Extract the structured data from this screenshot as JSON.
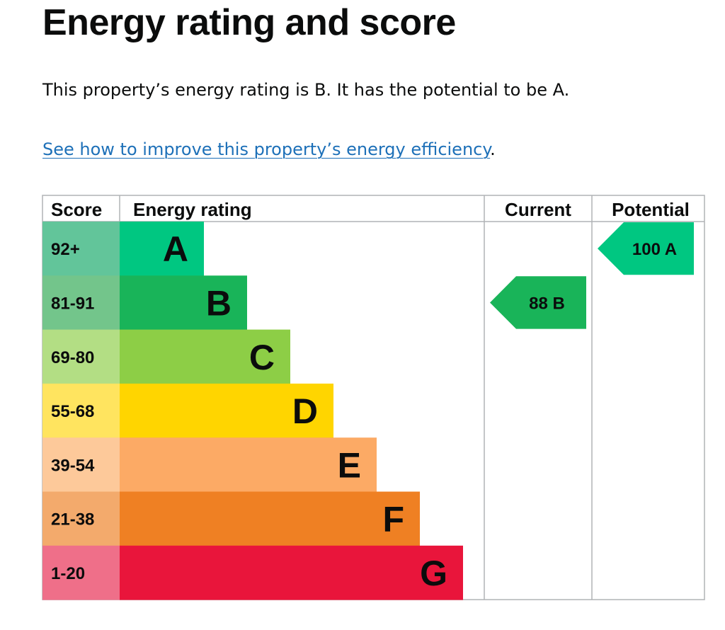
{
  "page": {
    "title": "Energy rating and score",
    "summary": "This property’s energy rating is B. It has the potential to be A.",
    "improve_link": "See how to improve this property’s energy efficiency",
    "improve_link_suffix": "."
  },
  "chart_data": {
    "type": "bar",
    "headers": {
      "score": "Score",
      "rating": "Energy rating",
      "current": "Current",
      "potential": "Potential"
    },
    "bands": [
      {
        "letter": "A",
        "score_range": "92+",
        "color": "#00c781",
        "score_color": "#62c59a"
      },
      {
        "letter": "B",
        "score_range": "81-91",
        "color": "#19b459",
        "score_color": "#73c58b"
      },
      {
        "letter": "C",
        "score_range": "69-80",
        "color": "#8dce46",
        "score_color": "#b3de84"
      },
      {
        "letter": "D",
        "score_range": "55-68",
        "color": "#ffd500",
        "score_color": "#ffe45f"
      },
      {
        "letter": "E",
        "score_range": "39-54",
        "color": "#fcaa65",
        "score_color": "#fdc99a"
      },
      {
        "letter": "F",
        "score_range": "21-38",
        "color": "#ef8023",
        "score_color": "#f3aa6c"
      },
      {
        "letter": "G",
        "score_range": "1-20",
        "color": "#e9153b",
        "score_color": "#ef6f89"
      }
    ],
    "current": {
      "score": 88,
      "band": "B",
      "label": "88  B",
      "color": "#19b459"
    },
    "potential": {
      "score": 100,
      "band": "A",
      "label": "100  A",
      "color": "#00c781"
    }
  }
}
